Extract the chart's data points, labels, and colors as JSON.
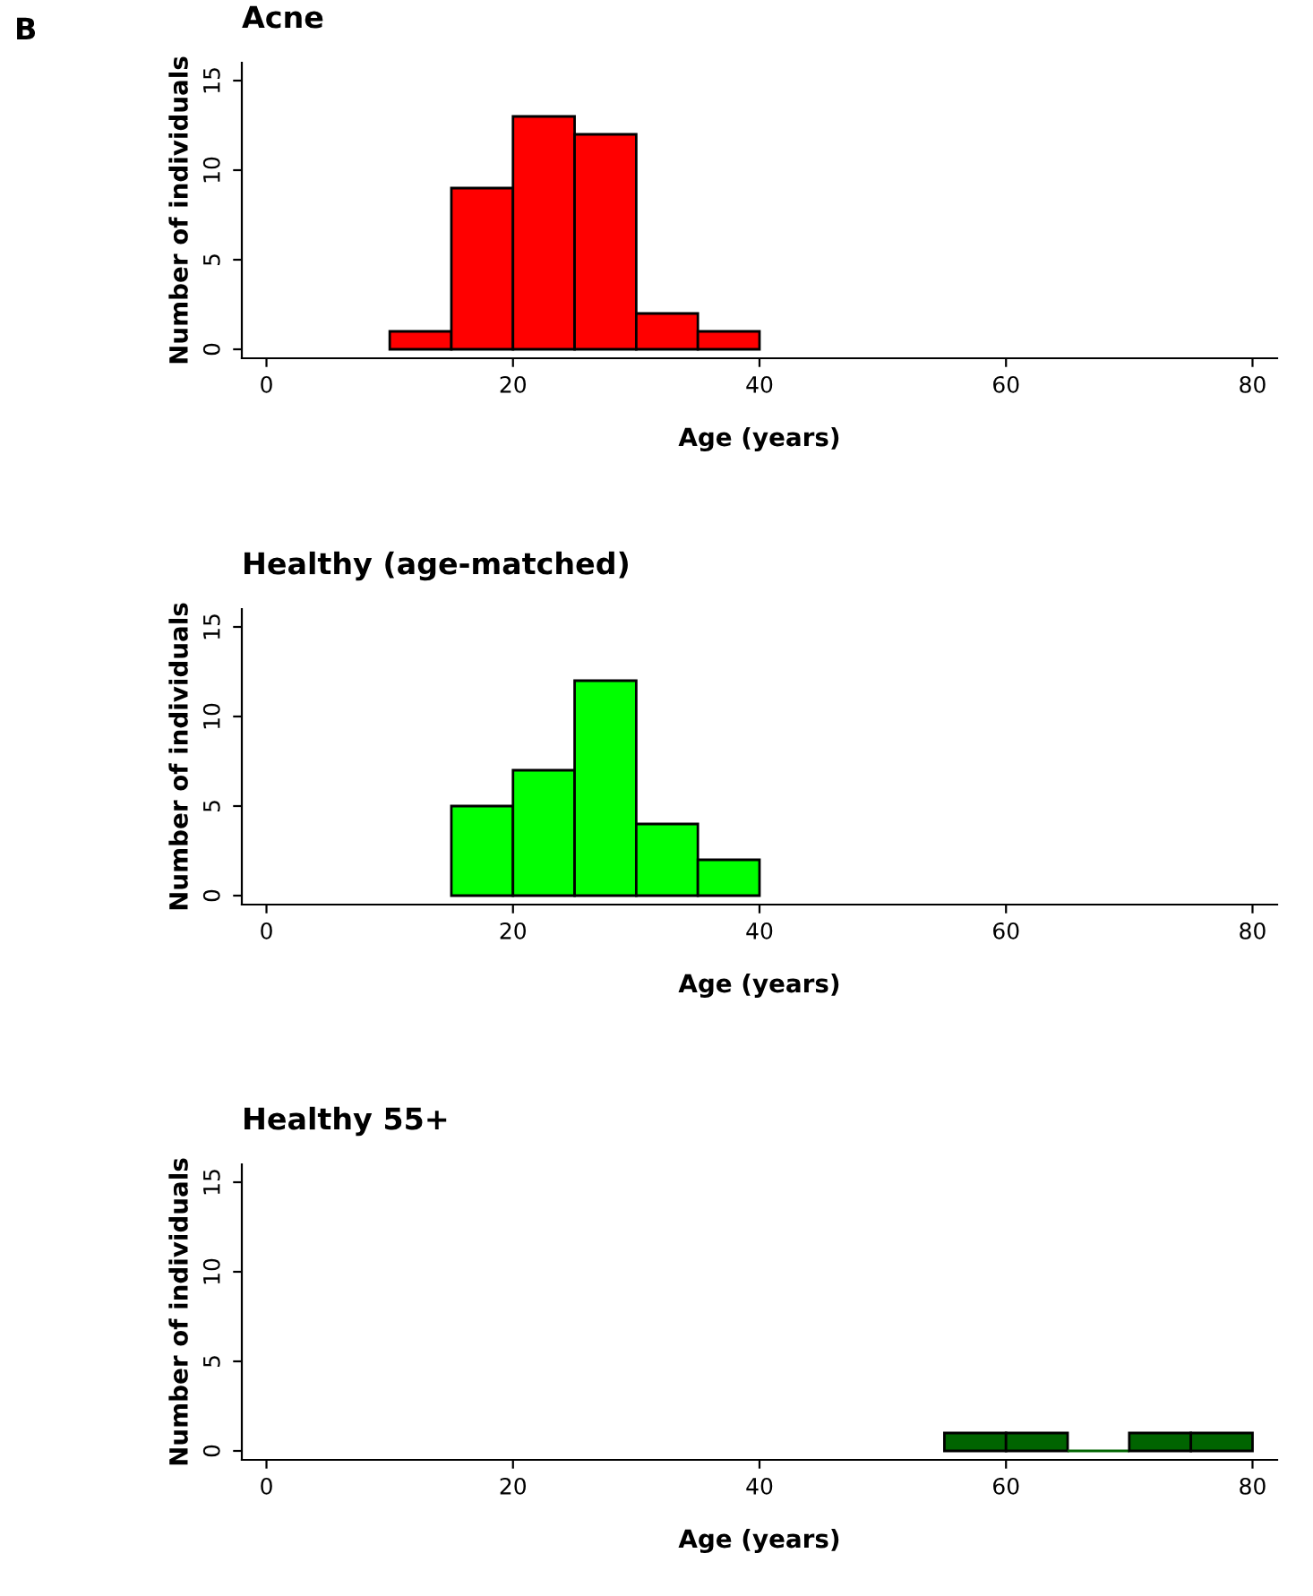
{
  "chart_data": [
    {
      "type": "histogram",
      "title": "Acne",
      "xlabel": "Age (years)",
      "ylabel": "Number of individuals",
      "annotations": [
        "B"
      ],
      "bins": [
        10,
        15,
        20,
        25,
        30,
        35,
        40
      ],
      "values": [
        1,
        9,
        13,
        12,
        2,
        1
      ],
      "color": "#ff0000",
      "xlim": [
        -2,
        82
      ],
      "ylim": [
        -0.5,
        16
      ],
      "xticks": [
        0,
        20,
        40,
        60,
        80
      ],
      "yticks": [
        0,
        5,
        10,
        15
      ],
      "grid": false
    },
    {
      "type": "histogram",
      "title": "Healthy (age-matched)",
      "xlabel": "Age (years)",
      "ylabel": "Number of individuals",
      "bins": [
        15,
        20,
        25,
        30,
        35,
        40
      ],
      "values": [
        5,
        7,
        12,
        4,
        2
      ],
      "color": "#00ff00",
      "xlim": [
        -2,
        82
      ],
      "ylim": [
        -0.5,
        16
      ],
      "xticks": [
        0,
        20,
        40,
        60,
        80
      ],
      "yticks": [
        0,
        5,
        10,
        15
      ],
      "grid": false
    },
    {
      "type": "histogram",
      "title": "Healthy 55+",
      "xlabel": "Age (years)",
      "ylabel": "Number of individuals",
      "bins": [
        55,
        60,
        65,
        70,
        75,
        80
      ],
      "values": [
        1,
        1,
        0,
        1,
        1
      ],
      "color": "#006400",
      "xlim": [
        -2,
        82
      ],
      "ylim": [
        -0.5,
        16
      ],
      "xticks": [
        0,
        20,
        40,
        60,
        80
      ],
      "yticks": [
        0,
        5,
        10,
        15
      ],
      "grid": false
    }
  ]
}
